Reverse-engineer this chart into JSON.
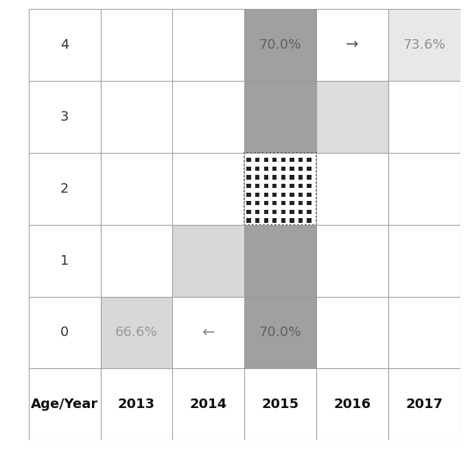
{
  "rows": [
    "4",
    "3",
    "2",
    "1",
    "0",
    "Age/Year"
  ],
  "cols": [
    "",
    "2013",
    "2014",
    "2015",
    "2016",
    "2017"
  ],
  "grid_rows": 6,
  "grid_cols": 6,
  "background_color": "#ffffff",
  "col_dark_gray": "#a0a0a0",
  "col_light_gray_16": "#dcdcdc",
  "col_light_gray_17": "#e8e8e8",
  "col_light_gray_13": "#d8d8d8",
  "col_light_gray_14": "#d8d8d8",
  "grid_line_color": "#999999",
  "header_fontsize": 14,
  "cell_fontsize": 14,
  "arrow_fontsize": 16
}
